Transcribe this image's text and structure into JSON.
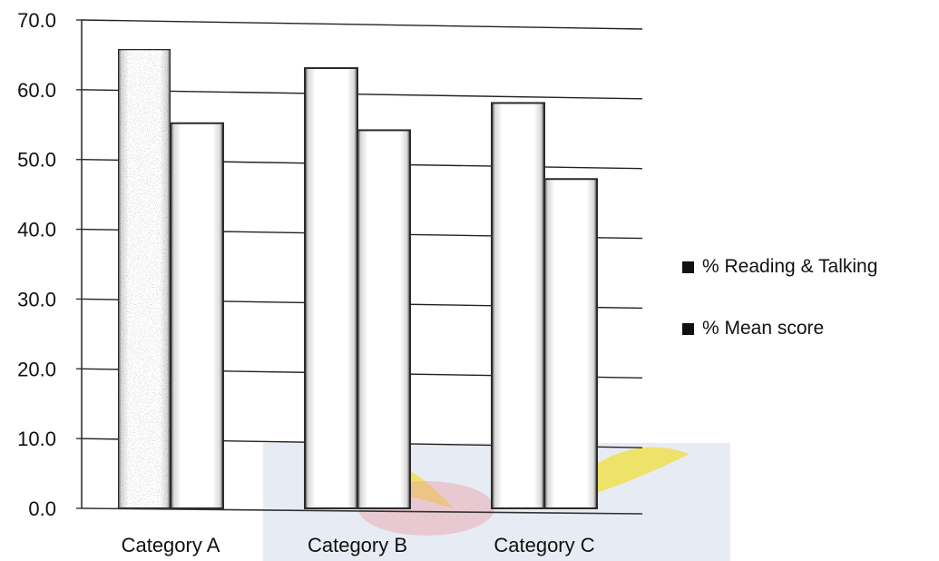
{
  "chart_data": {
    "type": "bar",
    "categories": [
      "Category A",
      "Category B",
      "Category C"
    ],
    "series": [
      {
        "name": "% Reading & Talking",
        "values": [
          65.8,
          63.1,
          58.1
        ]
      },
      {
        "name": "% Mean score",
        "values": [
          55.2,
          54.2,
          47.2
        ]
      }
    ],
    "yticks": [
      "0.0",
      "10.0",
      "20.0",
      "30.0",
      "40.0",
      "50.0",
      "60.0",
      "70.0"
    ],
    "ylim": [
      0,
      70
    ],
    "grid": true,
    "legend_position": "right",
    "colors": {
      "axis": "#333333",
      "grid": "#222222",
      "bar_edge": "#2a2a2a",
      "text": "#111111",
      "watermark_panel": "#e7ecf4",
      "watermark_wing": "#f2df3c",
      "watermark_accent": "#e8a0a8"
    }
  },
  "legend": {
    "items": [
      {
        "label": "% Reading & Talking"
      },
      {
        "label": "% Mean score"
      }
    ]
  }
}
